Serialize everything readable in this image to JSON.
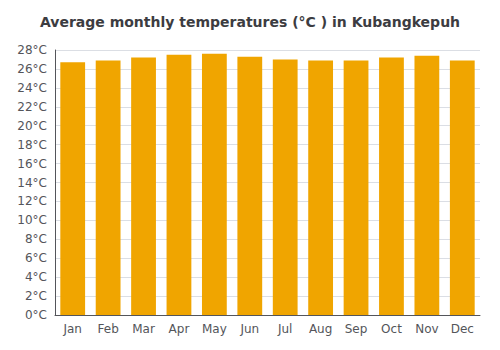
{
  "chart_data": {
    "type": "bar",
    "title": "Average monthly temperatures (°C ) in Kubangkepuh",
    "categories": [
      "Jan",
      "Feb",
      "Mar",
      "Apr",
      "May",
      "Jun",
      "Jul",
      "Aug",
      "Sep",
      "Oct",
      "Nov",
      "Dec"
    ],
    "values": [
      26.7,
      26.9,
      27.2,
      27.5,
      27.6,
      27.3,
      27.0,
      26.9,
      26.9,
      27.2,
      27.4,
      26.9
    ],
    "color": "#F0A500",
    "ylim": [
      0,
      28
    ],
    "yticks": [
      {
        "value": 0,
        "label": "0°C"
      },
      {
        "value": 2,
        "label": "2°C"
      },
      {
        "value": 4,
        "label": "4°C"
      },
      {
        "value": 6,
        "label": "6°C"
      },
      {
        "value": 8,
        "label": "8°C"
      },
      {
        "value": 10,
        "label": "10°C"
      },
      {
        "value": 12,
        "label": "12°C"
      },
      {
        "value": 14,
        "label": "14°C"
      },
      {
        "value": 16,
        "label": "16°C"
      },
      {
        "value": 18,
        "label": "18°C"
      },
      {
        "value": 20,
        "label": "20°C"
      },
      {
        "value": 22,
        "label": "22°C"
      },
      {
        "value": 24,
        "label": "24°C"
      },
      {
        "value": 26,
        "label": "26°C"
      },
      {
        "value": 28,
        "label": "28°C"
      }
    ],
    "grid": true
  }
}
